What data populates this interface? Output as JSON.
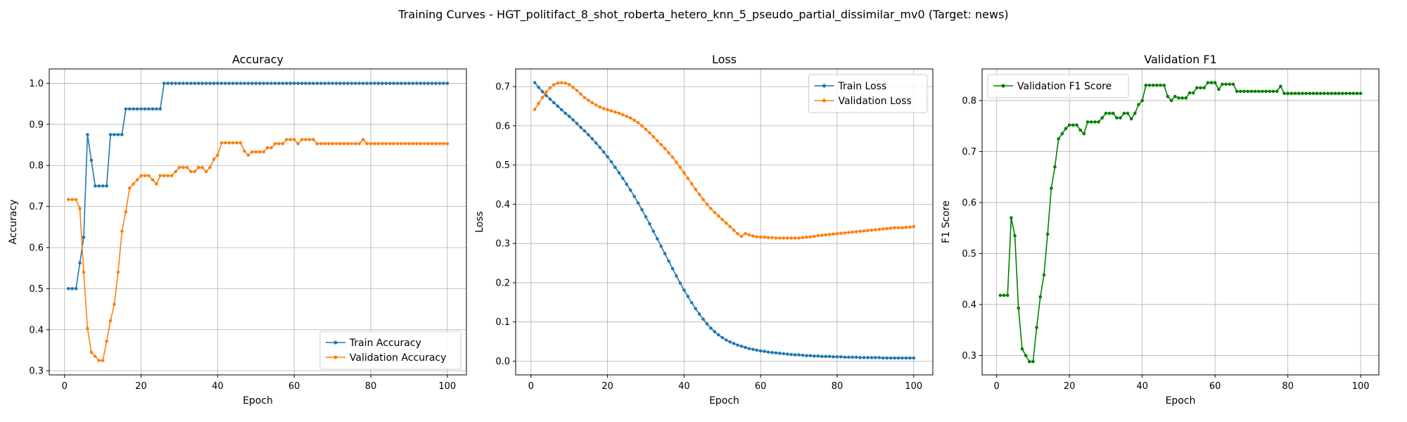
{
  "suptitle": "Training Curves - HGT_politifact_8_shot_roberta_hetero_knn_5_pseudo_partial_dissimilar_mv0 (Target: news)",
  "colors": {
    "blue": "#1f77b4",
    "orange": "#ff7f0e",
    "green": "#008000"
  },
  "chart_data": [
    {
      "type": "line",
      "title": "Accuracy",
      "xlabel": "Epoch",
      "ylabel": "Accuracy",
      "xlim": [
        -4,
        105
      ],
      "ylim": [
        0.29,
        1.035
      ],
      "xticks": [
        0,
        20,
        40,
        60,
        80,
        100
      ],
      "yticks": [
        0.3,
        0.4,
        0.5,
        0.6,
        0.7,
        0.8,
        0.9,
        1.0
      ],
      "ytick_labels": [
        "0.3",
        "0.4",
        "0.5",
        "0.6",
        "0.7",
        "0.8",
        "0.9",
        "1.0"
      ],
      "grid": true,
      "legend_position": "lower-right",
      "series": [
        {
          "name": "Train Accuracy",
          "color": "#1f77b4",
          "x_start": 1,
          "values": [
            0.5,
            0.5,
            0.5,
            0.5625,
            0.625,
            0.875,
            0.8125,
            0.75,
            0.75,
            0.75,
            0.75,
            0.875,
            0.875,
            0.875,
            0.875,
            0.9375,
            0.9375,
            0.9375,
            0.9375,
            0.9375,
            0.9375,
            0.9375,
            0.9375,
            0.9375,
            0.9375,
            1.0,
            1.0,
            1.0,
            1.0,
            1.0,
            1.0,
            1.0,
            1.0,
            1.0,
            1.0,
            1.0,
            1.0,
            1.0,
            1.0,
            1.0,
            1.0,
            1.0,
            1.0,
            1.0,
            1.0,
            1.0,
            1.0,
            1.0,
            1.0,
            1.0,
            1.0,
            1.0,
            1.0,
            1.0,
            1.0,
            1.0,
            1.0,
            1.0,
            1.0,
            1.0,
            1.0,
            1.0,
            1.0,
            1.0,
            1.0,
            1.0,
            1.0,
            1.0,
            1.0,
            1.0,
            1.0,
            1.0,
            1.0,
            1.0,
            1.0,
            1.0,
            1.0,
            1.0,
            1.0,
            1.0,
            1.0,
            1.0,
            1.0,
            1.0,
            1.0,
            1.0,
            1.0,
            1.0,
            1.0,
            1.0,
            1.0,
            1.0,
            1.0,
            1.0,
            1.0,
            1.0,
            1.0,
            1.0,
            1.0,
            1.0
          ]
        },
        {
          "name": "Validation Accuracy",
          "color": "#ff7f0e",
          "x_start": 1,
          "values": [
            0.717,
            0.717,
            0.717,
            0.695,
            0.54,
            0.403,
            0.345,
            0.335,
            0.325,
            0.325,
            0.372,
            0.422,
            0.462,
            0.54,
            0.64,
            0.687,
            0.745,
            0.755,
            0.765,
            0.775,
            0.775,
            0.775,
            0.765,
            0.755,
            0.775,
            0.775,
            0.775,
            0.775,
            0.785,
            0.795,
            0.795,
            0.795,
            0.785,
            0.785,
            0.795,
            0.795,
            0.785,
            0.795,
            0.815,
            0.825,
            0.855,
            0.855,
            0.855,
            0.855,
            0.855,
            0.855,
            0.835,
            0.825,
            0.833,
            0.833,
            0.833,
            0.833,
            0.843,
            0.843,
            0.853,
            0.853,
            0.853,
            0.863,
            0.863,
            0.863,
            0.853,
            0.863,
            0.863,
            0.863,
            0.863,
            0.853,
            0.853,
            0.853,
            0.853,
            0.853,
            0.853,
            0.853,
            0.853,
            0.853,
            0.853,
            0.853,
            0.853,
            0.863,
            0.853,
            0.853,
            0.853,
            0.853,
            0.853,
            0.853,
            0.853,
            0.853,
            0.853,
            0.853,
            0.853,
            0.853,
            0.853,
            0.853,
            0.853,
            0.853,
            0.853,
            0.853,
            0.853,
            0.853,
            0.853,
            0.853
          ]
        }
      ]
    },
    {
      "type": "line",
      "title": "Loss",
      "xlabel": "Epoch",
      "ylabel": "Loss",
      "xlim": [
        -4,
        105
      ],
      "ylim": [
        -0.035,
        0.745
      ],
      "xticks": [
        0,
        20,
        40,
        60,
        80,
        100
      ],
      "yticks": [
        0.0,
        0.1,
        0.2,
        0.3,
        0.4,
        0.5,
        0.6,
        0.7
      ],
      "ytick_labels": [
        "0.0",
        "0.1",
        "0.2",
        "0.3",
        "0.4",
        "0.5",
        "0.6",
        "0.7"
      ],
      "grid": true,
      "legend_position": "upper-right",
      "series": [
        {
          "name": "Train Loss",
          "color": "#1f77b4",
          "x_start": 1,
          "values": [
            0.71,
            0.698,
            0.687,
            0.677,
            0.668,
            0.659,
            0.65,
            0.641,
            0.632,
            0.624,
            0.615,
            0.606,
            0.596,
            0.587,
            0.577,
            0.567,
            0.556,
            0.545,
            0.533,
            0.521,
            0.508,
            0.494,
            0.48,
            0.466,
            0.451,
            0.436,
            0.42,
            0.403,
            0.386,
            0.368,
            0.35,
            0.331,
            0.312,
            0.293,
            0.274,
            0.255,
            0.236,
            0.217,
            0.199,
            0.181,
            0.165,
            0.149,
            0.134,
            0.12,
            0.107,
            0.095,
            0.084,
            0.075,
            0.067,
            0.06,
            0.054,
            0.049,
            0.045,
            0.041,
            0.038,
            0.035,
            0.032,
            0.03,
            0.028,
            0.026,
            0.025,
            0.023,
            0.022,
            0.021,
            0.02,
            0.019,
            0.018,
            0.017,
            0.016,
            0.016,
            0.015,
            0.014,
            0.014,
            0.013,
            0.013,
            0.012,
            0.012,
            0.012,
            0.011,
            0.011,
            0.011,
            0.01,
            0.01,
            0.01,
            0.01,
            0.009,
            0.009,
            0.009,
            0.009,
            0.009,
            0.009,
            0.008,
            0.008,
            0.008,
            0.008,
            0.008,
            0.008,
            0.008,
            0.008,
            0.008
          ]
        },
        {
          "name": "Validation Loss",
          "color": "#ff7f0e",
          "x_start": 1,
          "values": [
            0.642,
            0.657,
            0.672,
            0.686,
            0.697,
            0.705,
            0.709,
            0.71,
            0.709,
            0.705,
            0.698,
            0.69,
            0.681,
            0.672,
            0.665,
            0.659,
            0.653,
            0.648,
            0.644,
            0.641,
            0.638,
            0.635,
            0.632,
            0.628,
            0.624,
            0.62,
            0.614,
            0.608,
            0.6,
            0.591,
            0.582,
            0.572,
            0.562,
            0.552,
            0.542,
            0.531,
            0.52,
            0.507,
            0.494,
            0.48,
            0.466,
            0.452,
            0.438,
            0.425,
            0.412,
            0.4,
            0.389,
            0.379,
            0.37,
            0.361,
            0.352,
            0.343,
            0.334,
            0.325,
            0.318,
            0.325,
            0.322,
            0.319,
            0.317,
            0.316,
            0.316,
            0.315,
            0.315,
            0.314,
            0.314,
            0.314,
            0.314,
            0.314,
            0.314,
            0.314,
            0.315,
            0.316,
            0.317,
            0.318,
            0.32,
            0.321,
            0.322,
            0.323,
            0.324,
            0.325,
            0.326,
            0.327,
            0.328,
            0.329,
            0.33,
            0.331,
            0.332,
            0.333,
            0.334,
            0.335,
            0.336,
            0.337,
            0.338,
            0.339,
            0.34,
            0.34,
            0.34,
            0.341,
            0.342,
            0.343
          ]
        }
      ]
    },
    {
      "type": "line",
      "title": "Validation F1",
      "xlabel": "Epoch",
      "ylabel": "F1 Score",
      "xlim": [
        -4,
        105
      ],
      "ylim": [
        0.262,
        0.862
      ],
      "xticks": [
        0,
        20,
        40,
        60,
        80,
        100
      ],
      "yticks": [
        0.3,
        0.4,
        0.5,
        0.6,
        0.7,
        0.8
      ],
      "ytick_labels": [
        "0.3",
        "0.4",
        "0.5",
        "0.6",
        "0.7",
        "0.8"
      ],
      "grid": true,
      "legend_position": "upper-left",
      "series": [
        {
          "name": "Validation F1 Score",
          "color": "#008000",
          "x_start": 1,
          "values": [
            0.418,
            0.418,
            0.418,
            0.57,
            0.535,
            0.393,
            0.313,
            0.3,
            0.288,
            0.288,
            0.355,
            0.415,
            0.458,
            0.538,
            0.628,
            0.67,
            0.725,
            0.735,
            0.745,
            0.752,
            0.752,
            0.752,
            0.742,
            0.735,
            0.758,
            0.758,
            0.758,
            0.758,
            0.766,
            0.775,
            0.775,
            0.775,
            0.766,
            0.766,
            0.775,
            0.775,
            0.764,
            0.775,
            0.792,
            0.8,
            0.83,
            0.83,
            0.83,
            0.83,
            0.83,
            0.83,
            0.808,
            0.8,
            0.808,
            0.805,
            0.805,
            0.805,
            0.815,
            0.815,
            0.825,
            0.825,
            0.825,
            0.835,
            0.835,
            0.835,
            0.822,
            0.832,
            0.832,
            0.832,
            0.832,
            0.818,
            0.818,
            0.818,
            0.818,
            0.818,
            0.818,
            0.818,
            0.818,
            0.818,
            0.818,
            0.818,
            0.818,
            0.828,
            0.814,
            0.814,
            0.814,
            0.814,
            0.814,
            0.814,
            0.814,
            0.814,
            0.814,
            0.814,
            0.814,
            0.814,
            0.814,
            0.814,
            0.814,
            0.814,
            0.814,
            0.814,
            0.814,
            0.814,
            0.814,
            0.814
          ]
        }
      ]
    }
  ]
}
